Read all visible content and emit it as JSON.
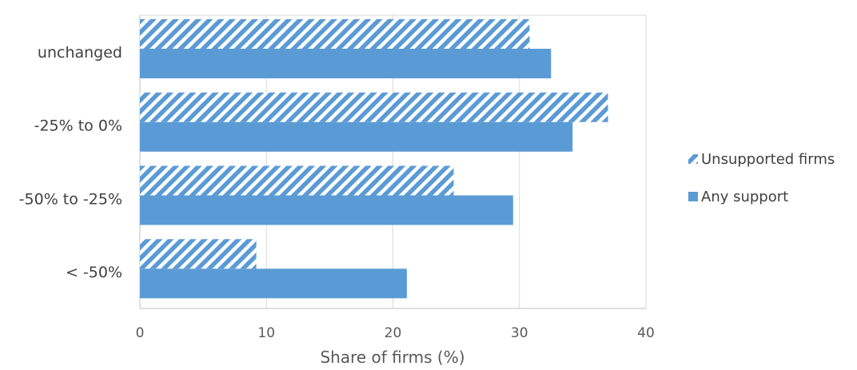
{
  "chart_data": {
    "type": "bar",
    "orientation": "horizontal",
    "categories": [
      "unchanged",
      "-25% to 0%",
      "-50% to -25%",
      "< -50%"
    ],
    "series": [
      {
        "name": "Unsupported firms",
        "values": [
          30.8,
          37.0,
          24.8,
          9.2
        ],
        "fill": "hatched",
        "color": "#5b9bd5"
      },
      {
        "name": "Any support",
        "values": [
          32.5,
          34.2,
          29.5,
          21.1
        ],
        "fill": "solid",
        "color": "#5b9bd5"
      }
    ],
    "xlabel": "Share of firms (%)",
    "xlim": [
      0,
      40
    ],
    "xticks": [
      "0",
      "10",
      "20",
      "30",
      "40"
    ],
    "grid": true,
    "legend_position": "right"
  }
}
